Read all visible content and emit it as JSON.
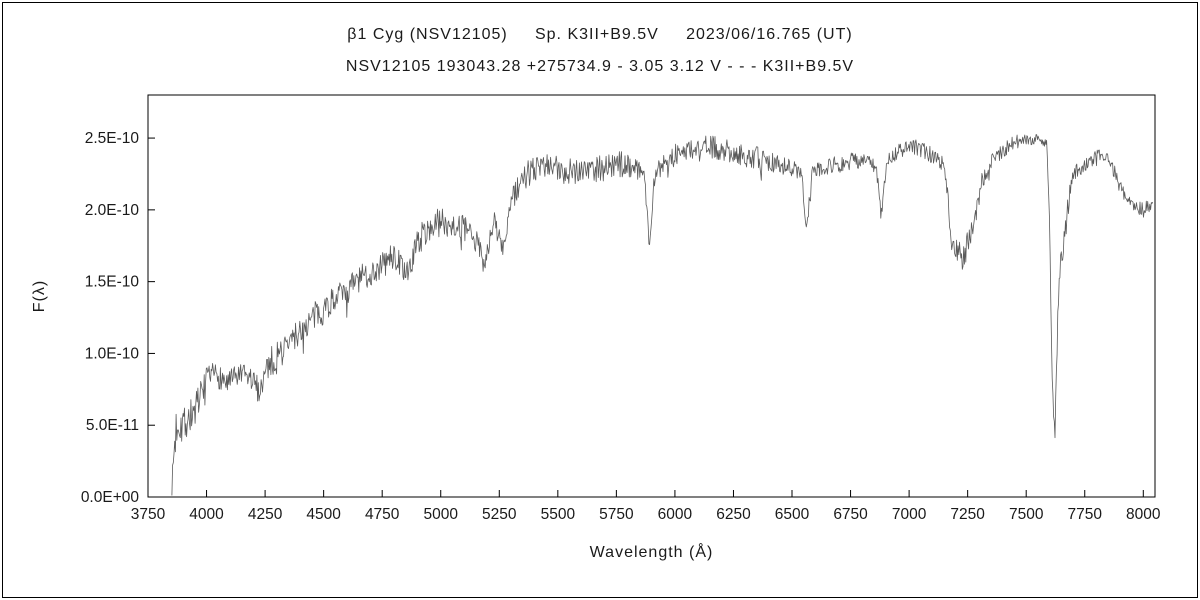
{
  "page": {
    "title_line1": "β1 Cyg (NSV12105)     Sp. K3II+B9.5V     2023/06/16.765 (UT)",
    "title_line2": "NSV12105 193043.28 +275734.9 - 3.05 3.12 V - - - K3II+B9.5V"
  },
  "chart_data": {
    "type": "line",
    "title": "β1 Cyg (NSV12105)  Sp. K3II+B9.5V  2023/06/16.765 (UT)",
    "subtitle": "NSV12105 193043.28 +275734.9 - 3.05 3.12 V - - - K3II+B9.5V",
    "xlabel": "Wavelength (Å)",
    "ylabel": "F(λ)",
    "xlim": [
      3750,
      8050
    ],
    "ylim_e10": [
      0,
      2.8
    ],
    "x_ticks": [
      3750,
      4000,
      4250,
      4500,
      4750,
      5000,
      5250,
      5500,
      5750,
      6000,
      6250,
      6500,
      6750,
      7000,
      7250,
      7500,
      7750,
      8000
    ],
    "y_ticks": [
      {
        "value_e10": 0.0,
        "label": "0.0E+00"
      },
      {
        "value_e10": 0.5,
        "label": "5.0E-11"
      },
      {
        "value_e10": 1.0,
        "label": "1.0E-10"
      },
      {
        "value_e10": 1.5,
        "label": "1.5E-10"
      },
      {
        "value_e10": 2.0,
        "label": "2.0E-10"
      },
      {
        "value_e10": 2.5,
        "label": "2.5E-10"
      }
    ],
    "grid": false,
    "legend": false,
    "line_color": "#5a5a5a",
    "axis_color": "#000000",
    "noise_seed": 7,
    "sample_step_angstrom": 3,
    "series": [
      {
        "name": "spectrum",
        "y_scale": "1e-10",
        "envelope_points_e10": [
          [
            3852,
            0.03,
            0.02
          ],
          [
            3860,
            0.3,
            0.22
          ],
          [
            3875,
            0.55,
            0.2
          ],
          [
            3905,
            0.52,
            0.15
          ],
          [
            3950,
            0.6,
            0.12
          ],
          [
            4000,
            0.8,
            0.1
          ],
          [
            4040,
            0.86,
            0.09
          ],
          [
            4090,
            0.79,
            0.09
          ],
          [
            4140,
            0.85,
            0.08
          ],
          [
            4190,
            0.82,
            0.09
          ],
          [
            4226,
            0.74,
            0.09
          ],
          [
            4260,
            0.92,
            0.1
          ],
          [
            4300,
            0.97,
            0.12
          ],
          [
            4340,
            1.05,
            0.1
          ],
          [
            4390,
            1.14,
            0.1
          ],
          [
            4440,
            1.22,
            0.1
          ],
          [
            4490,
            1.3,
            0.11
          ],
          [
            4540,
            1.37,
            0.1
          ],
          [
            4590,
            1.42,
            0.1
          ],
          [
            4640,
            1.5,
            0.1
          ],
          [
            4690,
            1.55,
            0.1
          ],
          [
            4740,
            1.6,
            0.1
          ],
          [
            4800,
            1.68,
            0.1
          ],
          [
            4861,
            1.55,
            0.08
          ],
          [
            4900,
            1.78,
            0.1
          ],
          [
            4950,
            1.87,
            0.1
          ],
          [
            5000,
            1.92,
            0.1
          ],
          [
            5050,
            1.9,
            0.1
          ],
          [
            5100,
            1.87,
            0.09
          ],
          [
            5160,
            1.76,
            0.08
          ],
          [
            5185,
            1.63,
            0.08
          ],
          [
            5230,
            1.92,
            0.08
          ],
          [
            5265,
            1.72,
            0.08
          ],
          [
            5300,
            2.05,
            0.09
          ],
          [
            5350,
            2.22,
            0.1
          ],
          [
            5420,
            2.3,
            0.1
          ],
          [
            5500,
            2.28,
            0.1
          ],
          [
            5600,
            2.28,
            0.1
          ],
          [
            5700,
            2.3,
            0.1
          ],
          [
            5800,
            2.32,
            0.09
          ],
          [
            5868,
            2.26,
            0.06
          ],
          [
            5892,
            1.8,
            0.05
          ],
          [
            5915,
            2.26,
            0.06
          ],
          [
            6000,
            2.38,
            0.08
          ],
          [
            6080,
            2.43,
            0.08
          ],
          [
            6150,
            2.44,
            0.08
          ],
          [
            6250,
            2.4,
            0.08
          ],
          [
            6350,
            2.36,
            0.08
          ],
          [
            6450,
            2.32,
            0.07
          ],
          [
            6540,
            2.26,
            0.05
          ],
          [
            6563,
            1.85,
            0.04
          ],
          [
            6585,
            2.28,
            0.05
          ],
          [
            6700,
            2.32,
            0.07
          ],
          [
            6800,
            2.35,
            0.06
          ],
          [
            6860,
            2.3,
            0.04
          ],
          [
            6880,
            1.95,
            0.05
          ],
          [
            6905,
            2.35,
            0.05
          ],
          [
            7000,
            2.45,
            0.06
          ],
          [
            7080,
            2.4,
            0.06
          ],
          [
            7150,
            2.32,
            0.05
          ],
          [
            7185,
            1.75,
            0.09
          ],
          [
            7230,
            1.68,
            0.1
          ],
          [
            7270,
            1.85,
            0.09
          ],
          [
            7310,
            2.2,
            0.06
          ],
          [
            7360,
            2.36,
            0.05
          ],
          [
            7450,
            2.47,
            0.05
          ],
          [
            7540,
            2.5,
            0.04
          ],
          [
            7588,
            2.46,
            0.03
          ],
          [
            7600,
            1.9,
            0.06
          ],
          [
            7612,
            0.75,
            0.08
          ],
          [
            7622,
            0.48,
            0.04
          ],
          [
            7640,
            1.5,
            0.14
          ],
          [
            7658,
            1.72,
            0.1
          ],
          [
            7680,
            2.05,
            0.08
          ],
          [
            7700,
            2.25,
            0.06
          ],
          [
            7760,
            2.32,
            0.05
          ],
          [
            7810,
            2.38,
            0.05
          ],
          [
            7860,
            2.33,
            0.05
          ],
          [
            7905,
            2.15,
            0.05
          ],
          [
            7950,
            2.03,
            0.06
          ],
          [
            8000,
            2.0,
            0.06
          ],
          [
            8040,
            2.03,
            0.06
          ]
        ]
      }
    ]
  }
}
